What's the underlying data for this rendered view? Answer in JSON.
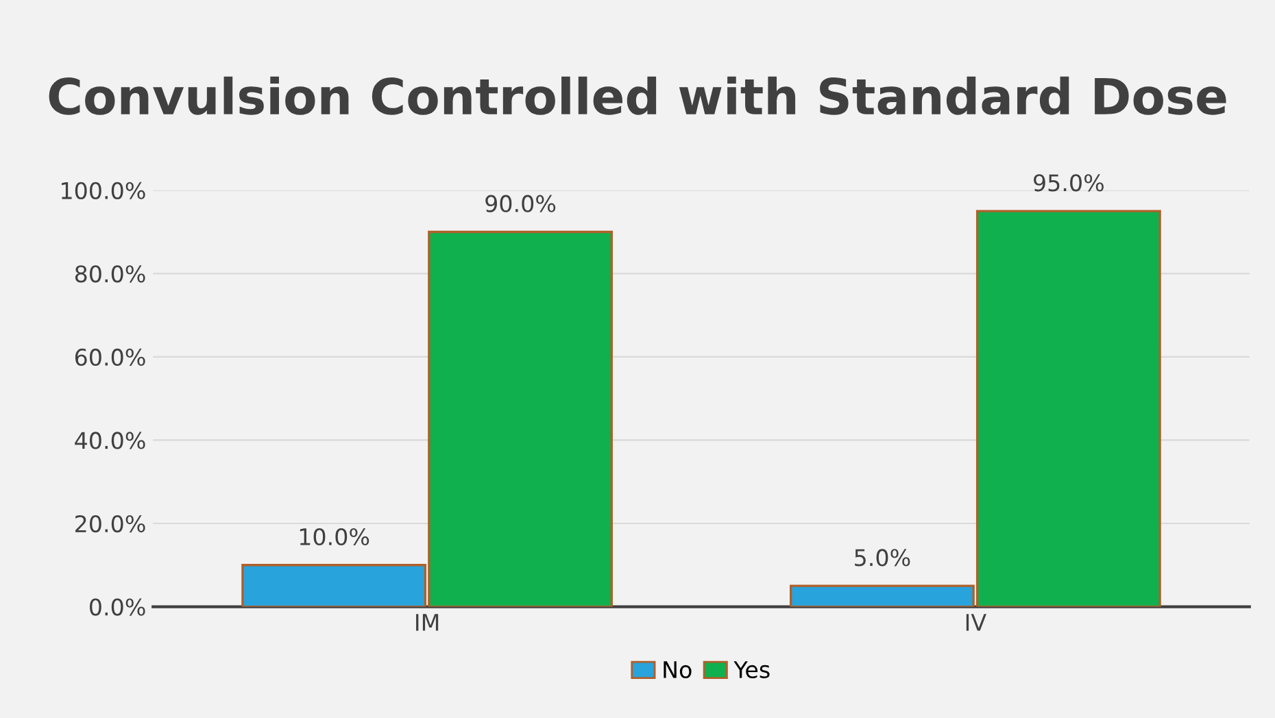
{
  "chart_data": {
    "type": "bar",
    "title": "Convulsion Controlled with Standard Dose",
    "categories": [
      "IM",
      "IV"
    ],
    "series": [
      {
        "name": "No",
        "color": "#29a3dc",
        "values": [
          10,
          5
        ],
        "value_labels": [
          "10.0%",
          "5.0%"
        ]
      },
      {
        "name": "Yes",
        "color": "#10b04f",
        "values": [
          90,
          95
        ],
        "value_labels": [
          "90.0%",
          "95.0%"
        ]
      }
    ],
    "ylim": [
      0,
      100
    ],
    "yticks": [
      {
        "value": 0,
        "label": "0.0%"
      },
      {
        "value": 20,
        "label": "20.0%"
      },
      {
        "value": 40,
        "label": "40.0%"
      },
      {
        "value": 60,
        "label": "60.0%"
      },
      {
        "value": 80,
        "label": "80.0%"
      },
      {
        "value": 100,
        "label": "100.0%"
      }
    ],
    "grid": "y",
    "legend": "bottom"
  }
}
